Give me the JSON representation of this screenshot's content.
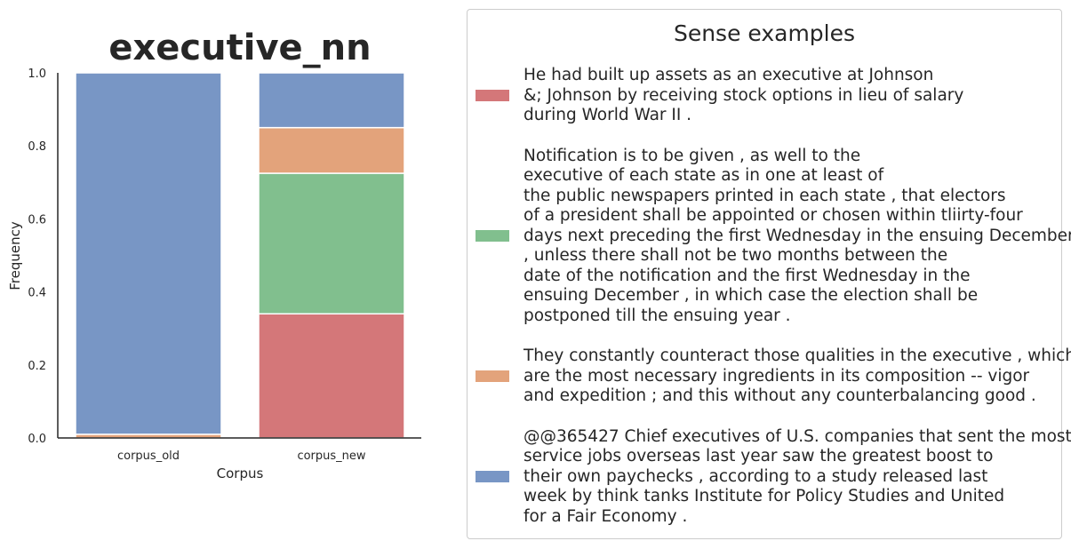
{
  "colors": {
    "red": "#d47779",
    "green": "#81bf8e",
    "orange": "#e3a37b",
    "blue": "#7896c5"
  },
  "chart_data": {
    "type": "bar",
    "stacked": true,
    "title": "executive_nn",
    "xlabel": "Corpus",
    "ylabel": "Frequency",
    "ylim": [
      0,
      1.0
    ],
    "yticks": [
      "0.0",
      "0.2",
      "0.4",
      "0.6",
      "0.8",
      "1.0"
    ],
    "categories": [
      "corpus_old",
      "corpus_new"
    ],
    "series": [
      {
        "color_key": "red",
        "values": [
          0.0,
          0.34
        ]
      },
      {
        "color_key": "green",
        "values": [
          0.0,
          0.385
        ]
      },
      {
        "color_key": "orange",
        "values": [
          0.01,
          0.125
        ]
      },
      {
        "color_key": "blue",
        "values": [
          0.99,
          0.15
        ]
      }
    ],
    "legend_position": "right"
  },
  "legend": {
    "title": "Sense examples",
    "entries": [
      {
        "color_key": "red",
        "lines": [
          "He had built up assets as an executive at Johnson",
          "&; Johnson by receiving stock options in lieu of salary",
          "during World War II ."
        ]
      },
      {
        "color_key": "green",
        "lines": [
          "Notification is to be given , as well to the",
          "executive of each state as in one at least of",
          "the public newspapers printed in each state , that electors",
          "of a president shall be appointed or chosen within tliirty-four",
          "days next preceding the first Wednesday in the ensuing December",
          ", unless there shall not be two months between the",
          "date of the notification and the first Wednesday in the",
          "ensuing December , in which case the election shall be",
          "postponed till the ensuing year ."
        ]
      },
      {
        "color_key": "orange",
        "lines": [
          "They constantly counteract those qualities in the executive , which",
          "are the most necessary ingredients in its composition -- vigor",
          "and expedition ; and this without any counterbalancing good ."
        ]
      },
      {
        "color_key": "blue",
        "lines": [
          "@@365427 Chief executives of U.S. companies that sent the most",
          "service jobs overseas last year saw the greatest boost to",
          "their own paychecks , according to a study released last",
          "week by think tanks Institute for Policy Studies and United",
          "for a Fair Economy ."
        ]
      }
    ]
  }
}
